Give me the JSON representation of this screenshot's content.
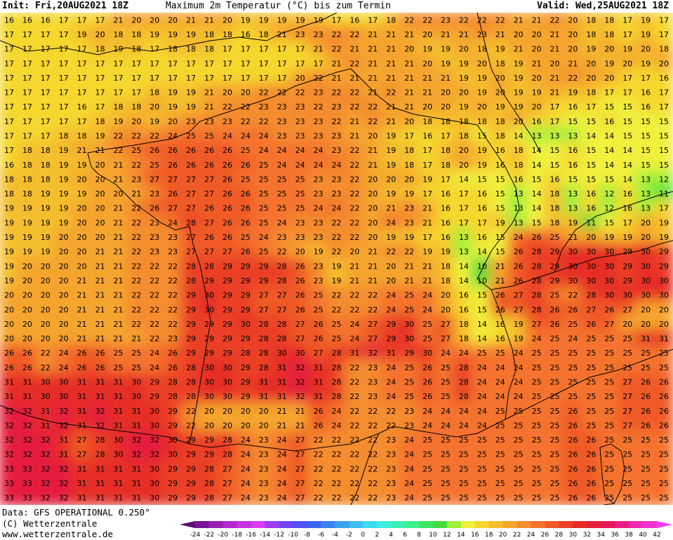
{
  "header": {
    "init_label": "Init: Fri,20AUG2021 18Z",
    "title": "Maximum 2m Temperatur (°C) bis zum Termin",
    "valid_label": "Valid: Wed,25AUG2021 18Z"
  },
  "footer": {
    "data_label": "Data: GFS OPERATIONAL 0.250°",
    "copyright": "(C) Wetterzentrale",
    "url": "www.wetterzentrale.de"
  },
  "legend": {
    "ticks": [
      "-24",
      "-22",
      "-20",
      "-18",
      "-16",
      "-14",
      "-12",
      "-10",
      "-8",
      "-6",
      "-4",
      "-2",
      "0",
      "2",
      "4",
      "6",
      "8",
      "10",
      "12",
      "14",
      "16",
      "18",
      "20",
      "22",
      "24",
      "26",
      "28",
      "30",
      "32",
      "34",
      "36",
      "38",
      "40",
      "42"
    ],
    "colors": [
      "#5a0a6e",
      "#7a1496",
      "#9a1eb4",
      "#b428d2",
      "#c832e6",
      "#dc3cf0",
      "#9a3cf0",
      "#6e46f0",
      "#5050f0",
      "#3c64f0",
      "#3c82f0",
      "#3ca0f0",
      "#3cbef0",
      "#3cdcf0",
      "#3cf0dc",
      "#3cf0b4",
      "#3cf08c",
      "#3ce664",
      "#46dc3c",
      "#a0f03c",
      "#f0f03c",
      "#f5d72d",
      "#f5be2d",
      "#f5a52d",
      "#f58c2d",
      "#f5732d",
      "#f05a28",
      "#eb4128",
      "#e62d28",
      "#e61e3c",
      "#e6145a",
      "#eb1e82",
      "#f028b4",
      "#f032d2",
      "#f03cf0"
    ]
  },
  "map": {
    "region": "France and surrounding areas",
    "temperature_grid": {
      "columns": 37,
      "rows": 34,
      "values": [
        [
          16,
          16,
          16,
          17,
          17,
          17,
          21,
          20,
          20,
          20,
          21,
          21,
          20,
          19,
          19,
          19,
          19,
          19,
          17,
          16,
          17,
          18,
          22,
          22,
          23,
          22,
          22,
          22,
          21,
          21,
          22,
          20,
          18,
          18,
          17,
          19,
          17
        ],
        [
          17,
          17,
          17,
          17,
          19,
          20,
          18,
          18,
          19,
          19,
          19,
          18,
          18,
          16,
          18,
          21,
          23,
          23,
          22,
          22,
          21,
          21,
          21,
          20,
          21,
          21,
          23,
          21,
          20,
          20,
          21,
          20,
          18,
          18,
          17,
          19,
          17
        ],
        [
          17,
          17,
          17,
          17,
          17,
          18,
          19,
          18,
          17,
          18,
          18,
          18,
          17,
          17,
          17,
          17,
          17,
          21,
          22,
          21,
          21,
          21,
          20,
          19,
          19,
          20,
          18,
          19,
          21,
          20,
          21,
          20,
          19,
          20,
          19,
          20,
          18
        ],
        [
          17,
          17,
          17,
          17,
          17,
          17,
          17,
          17,
          17,
          17,
          17,
          17,
          17,
          17,
          17,
          17,
          17,
          17,
          21,
          22,
          21,
          21,
          21,
          20,
          19,
          19,
          20,
          18,
          19,
          21,
          20,
          21,
          20,
          19,
          20,
          19,
          20
        ],
        [
          17,
          17,
          17,
          17,
          17,
          17,
          17,
          17,
          17,
          17,
          17,
          17,
          17,
          17,
          17,
          17,
          20,
          22,
          21,
          21,
          21,
          21,
          21,
          21,
          21,
          19,
          19,
          20,
          19,
          20,
          21,
          22,
          20,
          20,
          17,
          17,
          16
        ],
        [
          17,
          17,
          17,
          17,
          17,
          17,
          17,
          17,
          18,
          19,
          19,
          21,
          20,
          20,
          22,
          22,
          22,
          23,
          22,
          22,
          21,
          22,
          21,
          21,
          20,
          20,
          19,
          20,
          19,
          19,
          21,
          19,
          18,
          17,
          17,
          16,
          17
        ],
        [
          17,
          17,
          17,
          17,
          16,
          17,
          18,
          18,
          20,
          19,
          19,
          21,
          22,
          22,
          23,
          23,
          23,
          22,
          23,
          22,
          22,
          21,
          21,
          20,
          20,
          19,
          20,
          19,
          19,
          20,
          17,
          16,
          17,
          15,
          15,
          16,
          17
        ],
        [
          17,
          17,
          17,
          17,
          17,
          18,
          19,
          20,
          19,
          20,
          23,
          23,
          23,
          22,
          22,
          23,
          23,
          23,
          22,
          21,
          22,
          21,
          20,
          18,
          18,
          18,
          18,
          18,
          20,
          16,
          17,
          15,
          15,
          16,
          15,
          15,
          15
        ],
        [
          17,
          17,
          17,
          18,
          18,
          19,
          22,
          22,
          22,
          24,
          25,
          25,
          24,
          24,
          24,
          23,
          23,
          23,
          23,
          21,
          20,
          19,
          17,
          16,
          17,
          18,
          15,
          18,
          14,
          13,
          13,
          13,
          14,
          14,
          15,
          15,
          15
        ],
        [
          17,
          18,
          18,
          19,
          21,
          21,
          22,
          25,
          26,
          26,
          26,
          26,
          26,
          25,
          24,
          24,
          24,
          24,
          23,
          22,
          21,
          19,
          18,
          17,
          18,
          20,
          19,
          16,
          18,
          14,
          15,
          16,
          15,
          14,
          14,
          15,
          15
        ],
        [
          16,
          18,
          18,
          19,
          19,
          20,
          21,
          22,
          25,
          26,
          26,
          26,
          26,
          26,
          25,
          24,
          24,
          24,
          24,
          22,
          21,
          19,
          18,
          17,
          18,
          20,
          19,
          16,
          18,
          14,
          15,
          16,
          15,
          14,
          14,
          15,
          15
        ],
        [
          18,
          18,
          18,
          19,
          20,
          20,
          21,
          23,
          27,
          27,
          27,
          27,
          26,
          25,
          25,
          25,
          25,
          23,
          23,
          22,
          20,
          20,
          20,
          19,
          17,
          14,
          15,
          15,
          16,
          15,
          16,
          15,
          15,
          15,
          14,
          13,
          12
        ],
        [
          18,
          18,
          19,
          19,
          19,
          20,
          20,
          21,
          23,
          26,
          27,
          27,
          26,
          26,
          25,
          25,
          25,
          23,
          23,
          22,
          20,
          19,
          19,
          17,
          16,
          17,
          16,
          15,
          13,
          14,
          18,
          13,
          16,
          12,
          16,
          13,
          11
        ],
        [
          19,
          19,
          19,
          19,
          20,
          20,
          21,
          22,
          26,
          27,
          27,
          26,
          26,
          26,
          25,
          25,
          25,
          24,
          24,
          22,
          20,
          21,
          23,
          21,
          16,
          17,
          16,
          15,
          13,
          14,
          18,
          13,
          16,
          12,
          16,
          13,
          17
        ],
        [
          19,
          19,
          19,
          19,
          20,
          20,
          21,
          22,
          23,
          24,
          28,
          27,
          26,
          26,
          25,
          24,
          23,
          23,
          22,
          22,
          20,
          24,
          23,
          21,
          16,
          17,
          17,
          19,
          13,
          15,
          18,
          19,
          11,
          15,
          17,
          20,
          19
        ],
        [
          19,
          19,
          19,
          20,
          20,
          20,
          21,
          22,
          23,
          23,
          27,
          26,
          26,
          25,
          24,
          23,
          23,
          23,
          22,
          22,
          20,
          19,
          19,
          17,
          16,
          13,
          16,
          15,
          24,
          26,
          25,
          21,
          20,
          19,
          19,
          20,
          19
        ],
        [
          19,
          19,
          19,
          20,
          20,
          21,
          21,
          22,
          23,
          23,
          27,
          27,
          27,
          26,
          25,
          22,
          20,
          19,
          22,
          20,
          21,
          22,
          22,
          19,
          19,
          13,
          14,
          15,
          26,
          28,
          29,
          30,
          30,
          30,
          29,
          30,
          29
        ],
        [
          19,
          20,
          20,
          20,
          20,
          21,
          21,
          22,
          22,
          22,
          28,
          28,
          29,
          29,
          29,
          28,
          26,
          23,
          19,
          21,
          21,
          20,
          21,
          21,
          18,
          14,
          10,
          21,
          26,
          28,
          29,
          30,
          30,
          30,
          29,
          30,
          29
        ],
        [
          19,
          20,
          20,
          20,
          21,
          21,
          21,
          22,
          22,
          22,
          28,
          29,
          29,
          29,
          29,
          28,
          26,
          23,
          19,
          21,
          21,
          20,
          21,
          21,
          18,
          14,
          10,
          21,
          26,
          28,
          29,
          30,
          30,
          30,
          29,
          30,
          30
        ],
        [
          20,
          20,
          20,
          20,
          21,
          21,
          21,
          22,
          22,
          22,
          29,
          30,
          29,
          29,
          27,
          27,
          26,
          25,
          22,
          22,
          22,
          24,
          25,
          24,
          20,
          16,
          15,
          26,
          27,
          28,
          25,
          22,
          28,
          30,
          30,
          30,
          30
        ],
        [
          20,
          20,
          20,
          20,
          21,
          21,
          21,
          22,
          22,
          22,
          29,
          30,
          29,
          29,
          27,
          27,
          26,
          25,
          22,
          22,
          22,
          24,
          25,
          24,
          20,
          16,
          15,
          26,
          27,
          28,
          26,
          26,
          27,
          26,
          27,
          20,
          20
        ],
        [
          20,
          20,
          20,
          20,
          21,
          21,
          21,
          22,
          22,
          22,
          29,
          29,
          29,
          30,
          28,
          28,
          27,
          26,
          25,
          24,
          27,
          29,
          30,
          25,
          27,
          18,
          14,
          16,
          19,
          27,
          26,
          25,
          26,
          27,
          20,
          20,
          20
        ],
        [
          20,
          20,
          20,
          20,
          21,
          21,
          21,
          21,
          22,
          23,
          29,
          29,
          29,
          29,
          28,
          28,
          27,
          26,
          25,
          24,
          27,
          29,
          30,
          25,
          27,
          18,
          14,
          16,
          19,
          24,
          25,
          24,
          25,
          25,
          25,
          31,
          31
        ],
        [
          26,
          26,
          22,
          24,
          26,
          26,
          25,
          25,
          24,
          26,
          29,
          29,
          29,
          28,
          28,
          30,
          30,
          27,
          28,
          31,
          32,
          31,
          29,
          30,
          24,
          24,
          25,
          25,
          24,
          25,
          25,
          25,
          25,
          25,
          25,
          25,
          25
        ],
        [
          26,
          26,
          22,
          24,
          26,
          26,
          25,
          25,
          24,
          26,
          28,
          30,
          30,
          29,
          28,
          31,
          32,
          31,
          28,
          22,
          23,
          24,
          25,
          26,
          25,
          28,
          24,
          24,
          24,
          25,
          25,
          25,
          25,
          25,
          25,
          25,
          25
        ],
        [
          31,
          31,
          30,
          30,
          31,
          31,
          31,
          30,
          29,
          28,
          28,
          30,
          30,
          29,
          31,
          31,
          32,
          31,
          28,
          22,
          23,
          24,
          25,
          26,
          25,
          28,
          24,
          24,
          24,
          25,
          25,
          25,
          25,
          25,
          27,
          26,
          26
        ],
        [
          31,
          31,
          30,
          30,
          31,
          31,
          31,
          30,
          29,
          28,
          28,
          30,
          30,
          29,
          31,
          31,
          32,
          31,
          28,
          22,
          23,
          24,
          25,
          26,
          25,
          28,
          24,
          24,
          24,
          25,
          25,
          25,
          25,
          25,
          27,
          26,
          26
        ],
        [
          32,
          32,
          31,
          32,
          31,
          32,
          31,
          31,
          30,
          29,
          22,
          20,
          20,
          20,
          20,
          21,
          21,
          26,
          24,
          22,
          22,
          22,
          23,
          24,
          24,
          24,
          24,
          25,
          25,
          25,
          25,
          26,
          25,
          25,
          27,
          26,
          26
        ],
        [
          32,
          32,
          31,
          32,
          31,
          32,
          31,
          31,
          30,
          29,
          22,
          20,
          20,
          20,
          20,
          21,
          21,
          26,
          24,
          22,
          22,
          22,
          23,
          24,
          24,
          24,
          24,
          25,
          25,
          25,
          25,
          26,
          25,
          25,
          27,
          26,
          26
        ],
        [
          32,
          32,
          32,
          31,
          27,
          28,
          30,
          32,
          32,
          30,
          29,
          29,
          28,
          24,
          23,
          24,
          27,
          22,
          22,
          22,
          22,
          23,
          24,
          25,
          25,
          25,
          25,
          25,
          25,
          25,
          25,
          26,
          26,
          25,
          25,
          25,
          25
        ],
        [
          32,
          32,
          32,
          31,
          27,
          28,
          30,
          32,
          32,
          30,
          29,
          29,
          28,
          24,
          23,
          24,
          27,
          22,
          22,
          22,
          22,
          23,
          24,
          25,
          25,
          25,
          25,
          25,
          25,
          25,
          25,
          26,
          26,
          25,
          25,
          25,
          25
        ],
        [
          33,
          33,
          32,
          32,
          31,
          31,
          31,
          31,
          30,
          29,
          29,
          28,
          27,
          24,
          23,
          24,
          27,
          22,
          22,
          22,
          22,
          23,
          24,
          25,
          25,
          25,
          25,
          25,
          25,
          25,
          25,
          26,
          26,
          25,
          25,
          25,
          25
        ],
        [
          33,
          33,
          32,
          32,
          31,
          31,
          31,
          31,
          30,
          29,
          29,
          28,
          27,
          24,
          23,
          24,
          27,
          22,
          22,
          22,
          22,
          23,
          24,
          25,
          25,
          25,
          25,
          25,
          25,
          25,
          25,
          26,
          26,
          25,
          25,
          25,
          25
        ],
        [
          33,
          33,
          32,
          32,
          31,
          31,
          31,
          31,
          30,
          29,
          29,
          28,
          27,
          24,
          23,
          24,
          27,
          22,
          22,
          22,
          22,
          23,
          24,
          25,
          25,
          25,
          25,
          25,
          25,
          25,
          25,
          26,
          26,
          25,
          25,
          25,
          25
        ]
      ]
    }
  }
}
